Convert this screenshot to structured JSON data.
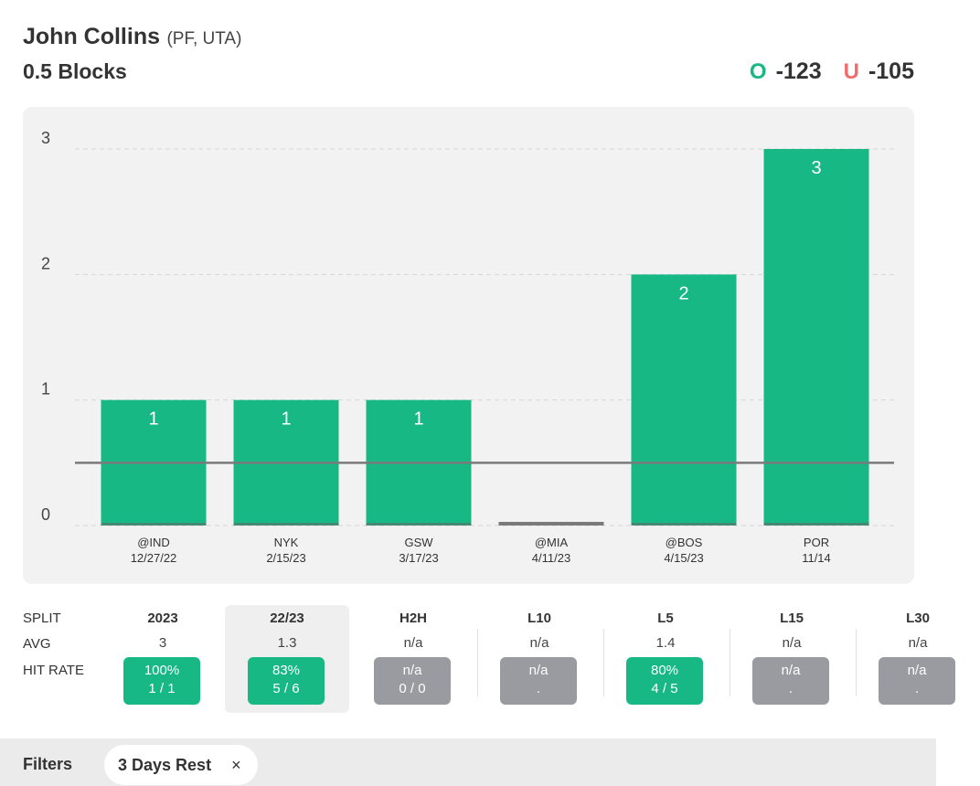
{
  "header": {
    "player_name": "John Collins",
    "player_meta": "(PF, UTA)",
    "prop_line": "0.5 Blocks",
    "over_mark": "O",
    "over_odds": "-123",
    "under_mark": "U",
    "under_odds": "-105"
  },
  "chart_data": {
    "type": "bar",
    "categories": [
      "@IND",
      "NYK",
      "GSW",
      "@MIA",
      "@BOS",
      "POR"
    ],
    "dates": [
      "12/27/22",
      "2/15/23",
      "3/17/23",
      "4/11/23",
      "4/15/23",
      "11/14"
    ],
    "values": [
      1,
      1,
      1,
      0,
      2,
      3
    ],
    "yticks": [
      0,
      1,
      2,
      3
    ],
    "ylim": [
      0,
      3
    ],
    "threshold": 0.5,
    "bar_color": "#17b883",
    "threshold_color": "#7a7a7a",
    "grid": true
  },
  "splits": {
    "row_labels": [
      "SPLIT",
      "AVG",
      "HIT RATE"
    ],
    "columns": [
      {
        "label": "2023",
        "avg": "3",
        "hit_pct": "100%",
        "hit_frac": "1 / 1",
        "status": "green",
        "selected": false
      },
      {
        "label": "22/23",
        "avg": "1.3",
        "hit_pct": "83%",
        "hit_frac": "5 / 6",
        "status": "green",
        "selected": true
      },
      {
        "label": "H2H",
        "avg": "n/a",
        "hit_pct": "n/a",
        "hit_frac": "0 / 0",
        "status": "gray",
        "selected": false
      },
      {
        "label": "L10",
        "avg": "n/a",
        "hit_pct": "n/a",
        "hit_frac": ".",
        "status": "gray",
        "selected": false
      },
      {
        "label": "L5",
        "avg": "1.4",
        "hit_pct": "80%",
        "hit_frac": "4 / 5",
        "status": "green",
        "selected": false
      },
      {
        "label": "L15",
        "avg": "n/a",
        "hit_pct": "n/a",
        "hit_frac": ".",
        "status": "gray",
        "selected": false
      },
      {
        "label": "L30",
        "avg": "n/a",
        "hit_pct": "n/a",
        "hit_frac": ".",
        "status": "gray",
        "selected": false
      }
    ]
  },
  "filters": {
    "label": "Filters",
    "chips": [
      {
        "label": "3 Days Rest",
        "close_icon": "×"
      }
    ]
  }
}
